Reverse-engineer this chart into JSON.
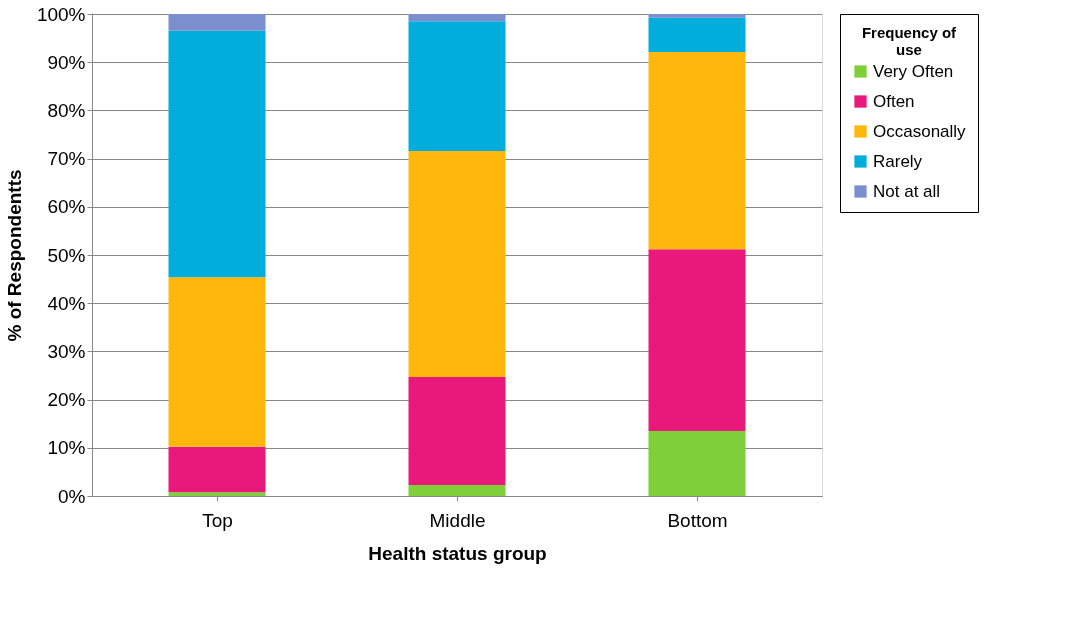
{
  "chart_data": {
    "type": "bar",
    "stacked": true,
    "xlabel": "Health status group",
    "ylabel": "% of Respondentts",
    "legend_title": "Frequency of use",
    "legend": "right",
    "grid": "y",
    "categories": [
      "Top",
      "Middle",
      "Bottom"
    ],
    "ylim": [
      0,
      100
    ],
    "yticks": [
      {
        "value": 0,
        "label": "0%"
      },
      {
        "value": 10,
        "label": "10%"
      },
      {
        "value": 20,
        "label": "20%"
      },
      {
        "value": 30,
        "label": "30%"
      },
      {
        "value": 40,
        "label": "40%"
      },
      {
        "value": 50,
        "label": "50%"
      },
      {
        "value": 60,
        "label": "60%"
      },
      {
        "value": 70,
        "label": "70%"
      },
      {
        "value": 80,
        "label": "80%"
      },
      {
        "value": 90,
        "label": "90%"
      },
      {
        "value": 100,
        "label": "100%"
      }
    ],
    "series": [
      {
        "name": "Very Often",
        "color": "#7ed03b",
        "values": [
          0.8,
          2.3,
          13.5
        ]
      },
      {
        "name": "Often",
        "color": "#e8197a",
        "values": [
          9.4,
          22.4,
          37.7
        ]
      },
      {
        "name": "Occasonally",
        "color": "#ffb70c",
        "values": [
          35.2,
          46.9,
          40.9
        ]
      },
      {
        "name": "Rarely",
        "color": "#00addc",
        "values": [
          51.1,
          26.9,
          7.1
        ]
      },
      {
        "name": "Not at all",
        "color": "#7b8fcf",
        "values": [
          3.5,
          1.5,
          0.8
        ]
      }
    ]
  }
}
